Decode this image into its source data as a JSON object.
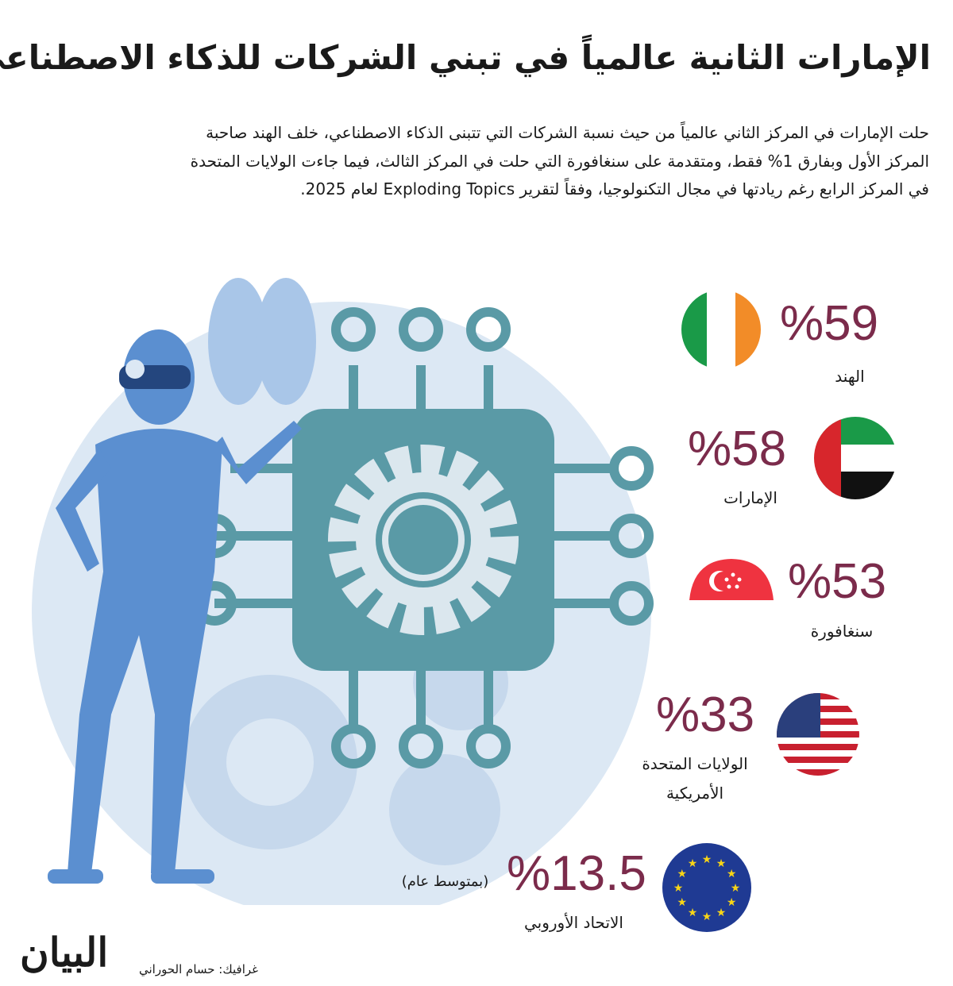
{
  "title": "الإمارات الثانية عالمياً في تبني الشركات للذكاء الاصطناعي",
  "intro": "حلت الإمارات في المركز الثاني عالمياً من حيث نسبة الشركات التي تتبنى الذكاء الاصطناعي، خلف الهند صاحبة المركز الأول وبفارق 1% فقط، ومتقدمة على سنغافورة التي حلت في المركز الثالث، فيما جاءت الولايات المتحدة في المركز الرابع رغم ريادتها في مجال التكنولوجيا، وفقاً لتقرير Exploding Topics لعام 2025.",
  "chart_data": {
    "type": "bar",
    "categories": [
      "الهند",
      "الإمارات",
      "سنغافورة",
      "الولايات المتحدة الأمريكية",
      "الاتحاد الأوروبي"
    ],
    "values": [
      59,
      58,
      53,
      33,
      13.5
    ],
    "unit": "%",
    "data_labels": [
      "%59",
      "%58",
      "%53",
      "%33",
      "%13.5"
    ],
    "notes": {
      "eu": "(بمتوسط عام)"
    },
    "label_color": "#7b2b4b"
  },
  "labels": {
    "india": "الهند",
    "uae": "الإمارات",
    "singapore": "سنغافورة",
    "usa_1": "الولايات المتحدة",
    "usa_2": "الأمريكية",
    "eu": "الاتحاد الأوروبي"
  },
  "credit": "غرافيك: حسام الحوراني",
  "logo": "البيان",
  "colors": {
    "illustration_blue": "#5b8fd0",
    "chip_teal": "#5a9aa6",
    "background_circle": "#dbe7f3"
  }
}
